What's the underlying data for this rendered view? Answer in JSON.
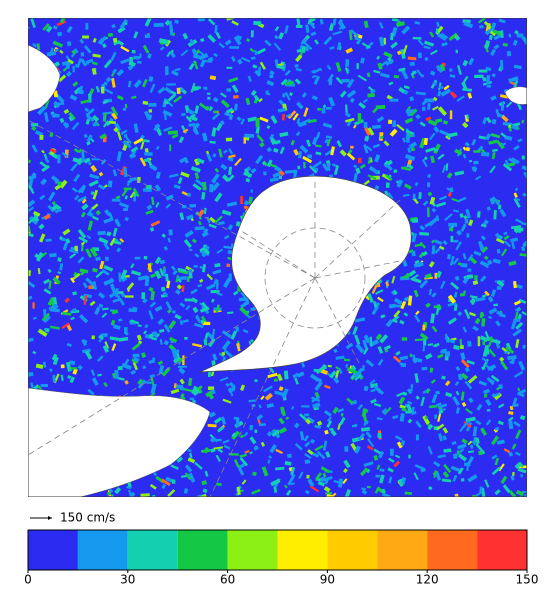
{
  "reference_label": "150 cm/s",
  "colorbar": {
    "lim": [
      0,
      150
    ],
    "ticks": [
      0,
      30,
      60,
      90,
      120,
      150
    ],
    "colors": [
      "#2b2bf2",
      "#1499ee",
      "#14d0b0",
      "#14c846",
      "#8cf014",
      "#ffee00",
      "#ffcc00",
      "#ffaa14",
      "#ff6a1e",
      "#ff3232"
    ]
  }
}
